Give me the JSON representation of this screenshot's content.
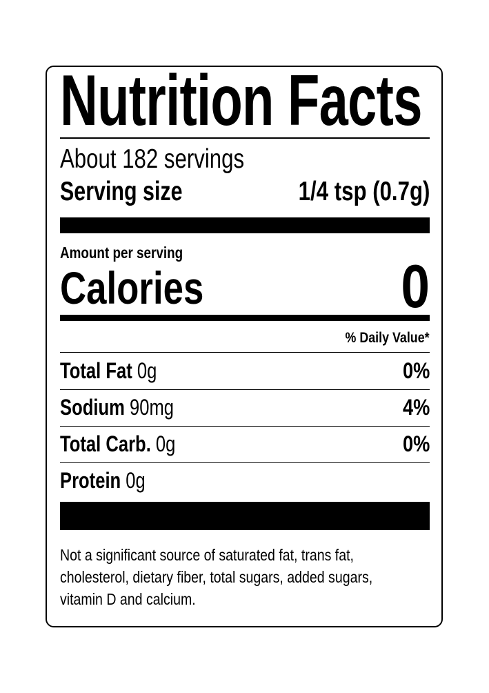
{
  "title": "Nutrition Facts",
  "servings": "About 182 servings",
  "serving_size_label": "Serving size",
  "serving_size_value": "1/4 tsp (0.7g)",
  "amount_per_serving": "Amount per serving",
  "calories_label": "Calories",
  "calories_value": "0",
  "daily_value_header": "% Daily Value*",
  "nutrients": [
    {
      "name": "Total Fat",
      "amount": "0g",
      "dv": "0%"
    },
    {
      "name": "Sodium",
      "amount": "90mg",
      "dv": "4%"
    },
    {
      "name": "Total Carb.",
      "amount": "0g",
      "dv": "0%"
    },
    {
      "name": "Protein",
      "amount": "0g",
      "dv": ""
    }
  ],
  "footnote": [
    "Not a significant source of saturated fat, trans fat,",
    "cholesterol, dietary fiber, total sugars, added sugars,",
    "vitamin D and calcium."
  ]
}
